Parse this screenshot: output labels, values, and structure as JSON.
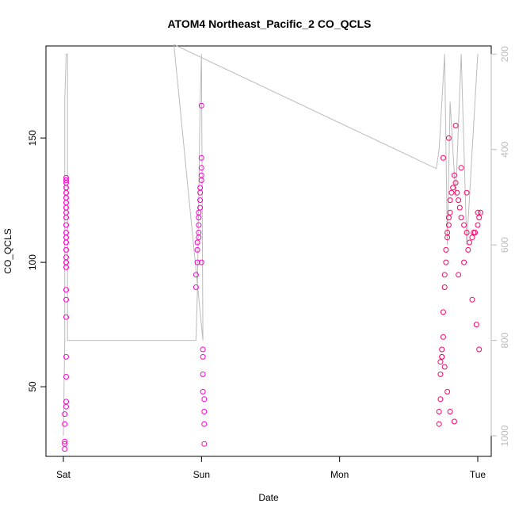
{
  "chart_data": {
    "type": "scatter",
    "title": "ATOM4 Northeast_Pacific_2 CO_QCLS",
    "xlabel": "Date",
    "ylabel": "CO_QCLS",
    "x_ticks": [
      "Sat",
      "Sun",
      "Mon",
      "Tue"
    ],
    "x_range_days": [
      -0.02,
      3.1
    ],
    "ylim": [
      22,
      187
    ],
    "y_ticks": [
      50,
      100,
      150
    ],
    "y2_label": "",
    "y2_ticks": [
      200,
      400,
      600,
      800,
      1000
    ],
    "y2_reversed": true,
    "y2_range": [
      183,
      1043
    ],
    "grid": false,
    "legend": "none",
    "colors": {
      "points": "#ff00cc",
      "dense_points": "#ff0066",
      "pressure_line": "#bbbbbb",
      "right_axis": "#bbbbbb"
    },
    "series": [
      {
        "role": "co-points",
        "x": [
          0.01,
          0.01,
          0.01,
          0.01,
          0.01,
          0.02,
          0.02,
          0.02,
          0.02,
          0.02,
          0.02,
          0.02,
          0.02,
          0.02,
          0.02,
          0.02,
          0.02,
          0.02,
          0.02,
          0.02,
          0.02,
          0.02,
          0.02,
          0.02,
          0.02,
          0.02,
          0.02,
          0.02,
          0.02,
          0.02,
          0.96,
          0.96,
          0.97,
          0.97,
          0.97,
          0.98,
          0.98,
          0.98,
          0.98,
          0.98,
          0.99,
          0.99,
          0.99,
          0.99,
          1.0,
          1.0,
          1.0,
          1.0,
          1.0,
          1.0,
          1.01,
          1.01,
          1.01,
          1.01,
          1.02,
          1.02,
          1.02,
          1.02,
          2.72,
          2.72,
          2.73,
          2.73,
          2.73,
          2.74,
          2.74,
          2.75,
          2.75,
          2.76,
          2.76,
          2.77,
          2.77,
          2.78,
          2.78,
          2.79,
          2.79,
          2.8,
          2.8,
          2.81,
          2.82,
          2.83,
          2.84,
          2.85,
          2.86,
          2.87,
          2.88,
          2.9,
          2.92,
          2.94,
          2.96,
          2.98,
          3.0,
          3.01,
          3.02,
          2.74,
          2.76,
          2.78,
          2.8,
          2.83,
          2.86,
          2.9,
          2.93,
          2.96,
          2.99,
          3.01,
          2.75,
          2.79,
          2.84,
          2.88,
          2.92,
          2.97,
          3.0
        ],
        "y": [
          25,
          27,
          28,
          35,
          39,
          42,
          44,
          54,
          62,
          78,
          85,
          89,
          98,
          100,
          102,
          105,
          108,
          110,
          112,
          115,
          118,
          120,
          122,
          124,
          126,
          128,
          130,
          132,
          133,
          134,
          90,
          95,
          100,
          105,
          108,
          110,
          112,
          115,
          118,
          120,
          122,
          125,
          128,
          130,
          133,
          135,
          138,
          142,
          163,
          100,
          65,
          62,
          55,
          48,
          45,
          40,
          35,
          27,
          35,
          40,
          45,
          55,
          60,
          62,
          65,
          70,
          80,
          90,
          95,
          100,
          105,
          110,
          112,
          115,
          118,
          120,
          125,
          128,
          130,
          135,
          132,
          128,
          125,
          122,
          118,
          115,
          112,
          108,
          110,
          112,
          115,
          118,
          120,
          62,
          58,
          48,
          40,
          36,
          95,
          100,
          105,
          85,
          75,
          65,
          142,
          150,
          155,
          138,
          128,
          112,
          120
        ]
      }
    ],
    "pressure_trace": {
      "x": [
        0.0,
        0.01,
        0.01,
        0.02,
        0.03,
        0.03,
        0.96,
        0.97,
        0.98,
        0.99,
        1.0,
        1.01,
        0.8,
        2.7,
        2.72,
        2.74,
        2.76,
        2.78,
        2.8,
        2.84,
        2.88,
        2.92,
        2.96,
        3.0
      ],
      "y": [
        1000,
        800,
        300,
        200,
        200,
        800,
        800,
        700,
        500,
        300,
        200,
        800,
        180,
        440,
        400,
        300,
        200,
        600,
        300,
        500,
        200,
        600,
        400,
        200
      ]
    }
  }
}
